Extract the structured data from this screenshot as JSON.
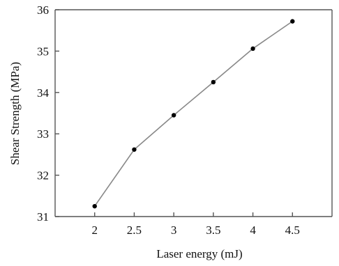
{
  "chart_data": {
    "type": "line",
    "title": "",
    "xlabel": "Laser energy (mJ)",
    "ylabel": "Shear Strength (MPa)",
    "xlim": [
      1.5,
      5.0
    ],
    "ylim": [
      31,
      36
    ],
    "x_ticks": [
      "2",
      "2.5",
      "3",
      "3.5",
      "4",
      "4.5"
    ],
    "y_ticks": [
      "31",
      "32",
      "33",
      "34",
      "35",
      "36"
    ],
    "grid": false,
    "legend": "none",
    "colors": {
      "line": "#888888",
      "marker": "#000000",
      "axis": "#555555"
    },
    "series": [
      {
        "x": [
          2,
          2.5,
          3,
          3.5,
          4,
          4.5
        ],
        "values": [
          31.25,
          32.62,
          33.45,
          34.25,
          35.06,
          35.72
        ]
      }
    ]
  }
}
